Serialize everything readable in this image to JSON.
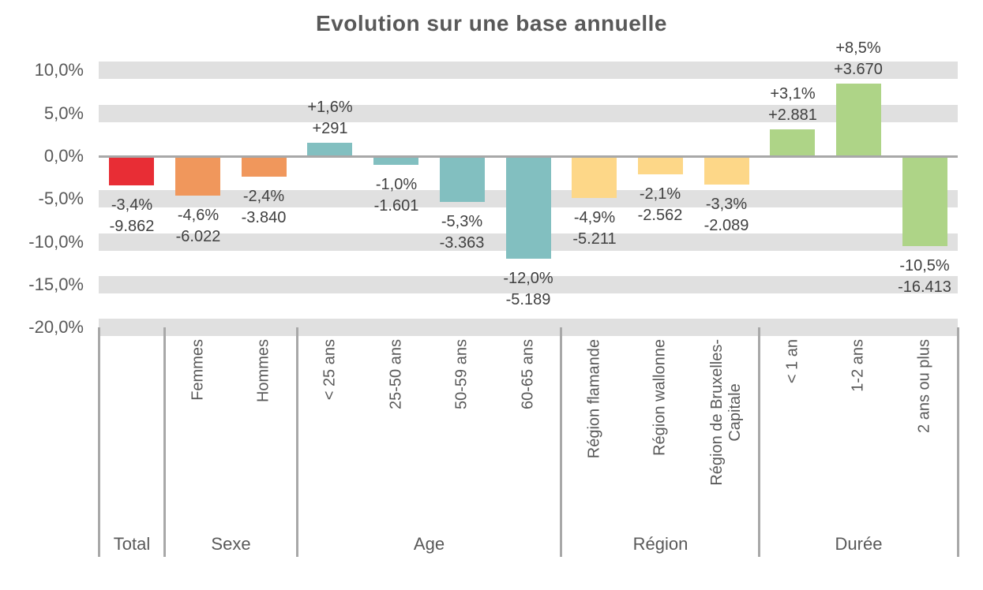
{
  "chart_data": {
    "type": "bar",
    "title": "Evolution sur une base annuelle",
    "y_axis": {
      "ylim": [
        -20,
        11.5
      ],
      "tick_step": 5,
      "ticks": [
        {
          "value": 10,
          "label": "10,0%"
        },
        {
          "value": 5,
          "label": "5,0%"
        },
        {
          "value": 0,
          "label": "0,0%"
        },
        {
          "value": -5,
          "label": "-5,0%"
        },
        {
          "value": -10,
          "label": "-10,0%"
        },
        {
          "value": -15,
          "label": "-15,0%"
        },
        {
          "value": -20,
          "label": "-20,0%"
        }
      ],
      "grid_style": "thick-gray-bands",
      "grid_band_values": [
        10,
        5,
        -5,
        -10,
        -15,
        -20
      ]
    },
    "groups": [
      {
        "label": "Total",
        "count": 1
      },
      {
        "label": "Sexe",
        "count": 2
      },
      {
        "label": "Age",
        "count": 4
      },
      {
        "label": "Région",
        "count": 3
      },
      {
        "label": "Durée",
        "count": 3
      }
    ],
    "categories": [
      {
        "group": "Total",
        "axis_label": "",
        "value": -3.4,
        "pct_label": "-3,4%",
        "count_label": "-9.862",
        "count_value": -9862,
        "color": "#e82d35"
      },
      {
        "group": "Sexe",
        "axis_label": "Femmes",
        "value": -4.6,
        "pct_label": "-4,6%",
        "count_label": "-6.022",
        "count_value": -6022,
        "color": "#f0975c"
      },
      {
        "group": "Sexe",
        "axis_label": "Hommes",
        "value": -2.4,
        "pct_label": "-2,4%",
        "count_label": "-3.840",
        "count_value": -3840,
        "color": "#f0975c"
      },
      {
        "group": "Age",
        "axis_label": "< 25 ans",
        "value": 1.6,
        "pct_label": "+1,6%",
        "count_label": "+291",
        "count_value": 291,
        "color": "#82bfc0"
      },
      {
        "group": "Age",
        "axis_label": "25-50 ans",
        "value": -1.0,
        "pct_label": "-1,0%",
        "count_label": "-1.601",
        "count_value": -1601,
        "color": "#82bfc0"
      },
      {
        "group": "Age",
        "axis_label": "50-59 ans",
        "value": -5.3,
        "pct_label": "-5,3%",
        "count_label": "-3.363",
        "count_value": -3363,
        "color": "#82bfc0"
      },
      {
        "group": "Age",
        "axis_label": "60-65 ans",
        "value": -12.0,
        "pct_label": "-12,0%",
        "count_label": "-5.189",
        "count_value": -5189,
        "color": "#82bfc0"
      },
      {
        "group": "Région",
        "axis_label": "Région flamande",
        "value": -4.9,
        "pct_label": "-4,9%",
        "count_label": "-5.211",
        "count_value": -5211,
        "color": "#fdd788"
      },
      {
        "group": "Région",
        "axis_label": "Région wallonne",
        "value": -2.1,
        "pct_label": "-2,1%",
        "count_label": "-2.562",
        "count_value": -2562,
        "color": "#fdd788"
      },
      {
        "group": "Région",
        "axis_label": "Région de Bruxelles-\nCapitale",
        "value": -3.3,
        "pct_label": "-3,3%",
        "count_label": "-2.089",
        "count_value": -2089,
        "color": "#fdd788"
      },
      {
        "group": "Durée",
        "axis_label": "< 1 an",
        "value": 3.1,
        "pct_label": "+3,1%",
        "count_label": "+2.881",
        "count_value": 2881,
        "color": "#aed487"
      },
      {
        "group": "Durée",
        "axis_label": "1-2 ans",
        "value": 8.5,
        "pct_label": "+8,5%",
        "count_label": "+3.670",
        "count_value": 3670,
        "color": "#aed487"
      },
      {
        "group": "Durée",
        "axis_label": "2 ans ou plus",
        "value": -10.5,
        "pct_label": "-10,5%",
        "count_label": "-16.413",
        "count_value": -16413,
        "color": "#aed487"
      }
    ],
    "colors": {
      "grid_band": "#e0e0e0",
      "zero_line": "#a8a8a8",
      "separator": "#a8a8a8",
      "tick_text": "#595959",
      "category_text": "#595959",
      "group_text": "#595959",
      "data_label_text": "#404040",
      "title_text": "#595959",
      "series_total": "#e82d35",
      "series_sexe": "#f0975c",
      "series_age": "#82bfc0",
      "series_region": "#fdd788",
      "series_duree": "#aed487"
    },
    "legend": null
  }
}
